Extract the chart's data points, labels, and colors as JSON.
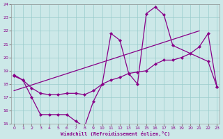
{
  "xlabel": "Windchill (Refroidissement éolien,°C)",
  "bg_color": "#cce8e8",
  "line_color": "#880088",
  "grid_color": "#99cccc",
  "xlim_min": -0.3,
  "xlim_max": 23.3,
  "ylim_min": 15,
  "ylim_max": 24,
  "xticks": [
    0,
    1,
    2,
    3,
    4,
    5,
    6,
    7,
    8,
    9,
    10,
    11,
    12,
    13,
    14,
    15,
    16,
    17,
    18,
    19,
    20,
    21,
    22,
    23
  ],
  "yticks": [
    15,
    16,
    17,
    18,
    19,
    20,
    21,
    22,
    23,
    24
  ],
  "curve1_x": [
    0,
    1,
    2,
    3,
    4,
    5,
    6,
    7,
    8,
    9,
    10,
    11,
    12,
    13,
    14,
    15,
    16,
    17,
    18,
    22,
    23
  ],
  "curve1_y": [
    18.7,
    18.3,
    17.0,
    15.7,
    15.7,
    15.7,
    15.7,
    15.2,
    14.8,
    16.7,
    18.0,
    21.8,
    21.3,
    18.8,
    18.0,
    23.3,
    23.8,
    23.2,
    20.9,
    19.7,
    17.8
  ],
  "curve2_x": [
    0,
    1,
    2,
    3,
    4,
    5,
    6,
    7,
    8,
    9,
    10,
    11,
    12,
    13,
    14,
    15,
    16,
    17,
    18,
    19,
    20,
    21,
    22,
    23
  ],
  "curve2_y": [
    18.6,
    18.3,
    17.7,
    17.3,
    17.2,
    17.2,
    17.3,
    17.3,
    17.2,
    17.5,
    18.0,
    18.3,
    18.5,
    18.8,
    18.9,
    19.0,
    19.5,
    19.8,
    19.8,
    20.0,
    20.3,
    20.8,
    21.8,
    17.8
  ],
  "trend_x": [
    0,
    21
  ],
  "trend_y": [
    17.5,
    22.0
  ]
}
